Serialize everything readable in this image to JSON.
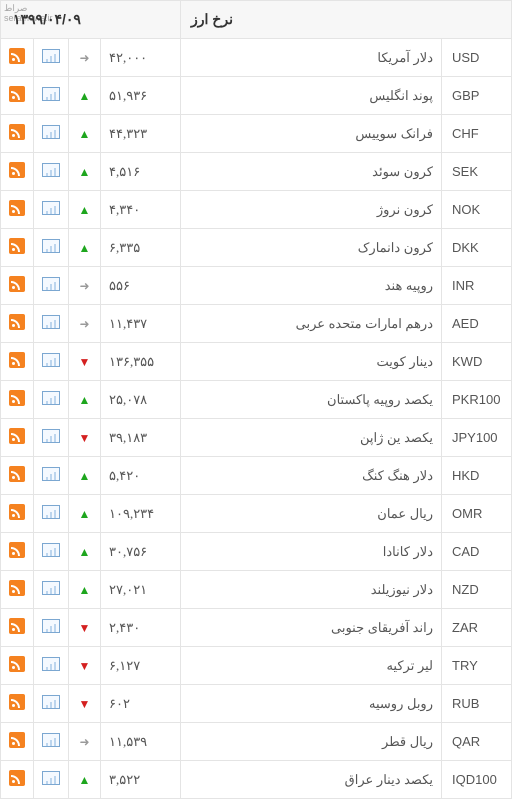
{
  "header": {
    "title": "نرخ ارز",
    "date": "۱۳۹۹/۰۴/۰۹"
  },
  "watermark": {
    "line1": "صراط",
    "line2": "seratnews.ir"
  },
  "trend_glyphs": {
    "up": "▲",
    "down": "▼",
    "flat": "➜"
  },
  "currencies": [
    {
      "code": "USD",
      "name": "دلار آمریکا",
      "rate": "۴۲,۰۰۰",
      "trend": "flat"
    },
    {
      "code": "GBP",
      "name": "پوند انگلیس",
      "rate": "۵۱,۹۳۶",
      "trend": "up"
    },
    {
      "code": "CHF",
      "name": "فرانک سوییس",
      "rate": "۴۴,۳۲۳",
      "trend": "up"
    },
    {
      "code": "SEK",
      "name": "کرون سوئد",
      "rate": "۴,۵۱۶",
      "trend": "up"
    },
    {
      "code": "NOK",
      "name": "کرون نروژ",
      "rate": "۴,۳۴۰",
      "trend": "up"
    },
    {
      "code": "DKK",
      "name": "کرون دانمارک",
      "rate": "۶,۳۳۵",
      "trend": "up"
    },
    {
      "code": "INR",
      "name": "روپیه هند",
      "rate": "۵۵۶",
      "trend": "flat"
    },
    {
      "code": "AED",
      "name": "درهم امارات متحده عربی",
      "rate": "۱۱,۴۳۷",
      "trend": "flat"
    },
    {
      "code": "KWD",
      "name": "دینار کویت",
      "rate": "۱۳۶,۳۵۵",
      "trend": "down"
    },
    {
      "code": "PKR100",
      "name": "یکصد روپیه پاکستان",
      "rate": "۲۵,۰۷۸",
      "trend": "up"
    },
    {
      "code": "JPY100",
      "name": "یکصد ین ژاپن",
      "rate": "۳۹,۱۸۳",
      "trend": "down"
    },
    {
      "code": "HKD",
      "name": "دلار هنگ کنگ",
      "rate": "۵,۴۲۰",
      "trend": "up"
    },
    {
      "code": "OMR",
      "name": "ریال عمان",
      "rate": "۱۰۹,۲۳۴",
      "trend": "up"
    },
    {
      "code": "CAD",
      "name": "دلار کانادا",
      "rate": "۳۰,۷۵۶",
      "trend": "up"
    },
    {
      "code": "NZD",
      "name": "دلار نیوزیلند",
      "rate": "۲۷,۰۲۱",
      "trend": "up"
    },
    {
      "code": "ZAR",
      "name": "راند آفریقای جنوبی",
      "rate": "۲,۴۳۰",
      "trend": "down"
    },
    {
      "code": "TRY",
      "name": "لیر ترکیه",
      "rate": "۶,۱۲۷",
      "trend": "down"
    },
    {
      "code": "RUB",
      "name": "روبل روسیه",
      "rate": "۶۰۲",
      "trend": "down"
    },
    {
      "code": "QAR",
      "name": "ریال قطر",
      "rate": "۱۱,۵۳۹",
      "trend": "flat"
    },
    {
      "code": "IQD100",
      "name": "یکصد دینار عراق",
      "rate": "۳,۵۲۲",
      "trend": "up"
    }
  ]
}
